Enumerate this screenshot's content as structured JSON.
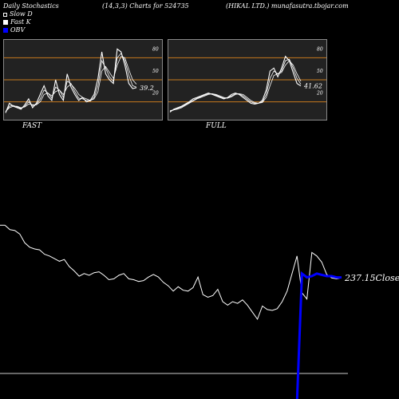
{
  "header": {
    "title": "Daily Stochastics",
    "params": "(14,3,3) Charts for 524735",
    "company": "(HIKAL LTD.) munafasutra.tbojar.com"
  },
  "legend": [
    {
      "label": "Slow  D",
      "color": "#ffffff",
      "style": "outline"
    },
    {
      "label": "Fast K",
      "color": "#ffffff",
      "style": "filled"
    },
    {
      "label": "OBV",
      "color": "#0000ff",
      "style": "filled"
    }
  ],
  "colors": {
    "background": "#000000",
    "panel_bg": "#222222",
    "level_lines": "#c87a1e",
    "line": "#ffffff",
    "obv": "#0000ff"
  },
  "chart_data": [
    {
      "type": "line",
      "name": "fast-stochastic",
      "panel_label": "FAST",
      "ylim": [
        0,
        100
      ],
      "levels": [
        20,
        50,
        80
      ],
      "level_labels": [
        "20",
        "50",
        "80"
      ],
      "last_value_label": "39.2",
      "series": [
        {
          "values": [
            5,
            18,
            14,
            12,
            10,
            16,
            24,
            12,
            18,
            30,
            42,
            28,
            22,
            50,
            30,
            22,
            58,
            40,
            30,
            22,
            26,
            20,
            22,
            30,
            52,
            88,
            58,
            50,
            45,
            92,
            88,
            70,
            45,
            38,
            39.2
          ]
        },
        {
          "values": [
            6,
            14,
            15,
            13,
            11,
            14,
            20,
            15,
            16,
            24,
            36,
            32,
            25,
            40,
            36,
            26,
            48,
            45,
            34,
            25,
            24,
            22,
            21,
            26,
            42,
            76,
            66,
            54,
            48,
            80,
            86,
            76,
            56,
            42,
            40
          ]
        },
        {
          "values": [
            7,
            12,
            14,
            14,
            12,
            13,
            17,
            16,
            16,
            20,
            30,
            32,
            28,
            34,
            36,
            30,
            40,
            44,
            38,
            30,
            26,
            24,
            22,
            24,
            34,
            62,
            68,
            60,
            52,
            70,
            82,
            80,
            64,
            50,
            44
          ]
        }
      ]
    },
    {
      "type": "line",
      "name": "full-stochastic",
      "panel_label": "FULL",
      "ylim": [
        0,
        100
      ],
      "levels": [
        20,
        50,
        80
      ],
      "level_labels": [
        "20",
        "50",
        "80"
      ],
      "last_value_label": "41.62",
      "series": [
        {
          "values": [
            6,
            10,
            12,
            14,
            17,
            20,
            24,
            26,
            28,
            30,
            32,
            30,
            28,
            26,
            24,
            26,
            30,
            32,
            30,
            26,
            22,
            18,
            17,
            18,
            22,
            36,
            62,
            66,
            54,
            66,
            82,
            76,
            60,
            45,
            41.62
          ]
        },
        {
          "values": [
            7,
            9,
            11,
            13,
            16,
            19,
            22,
            25,
            27,
            29,
            31,
            31,
            29,
            27,
            25,
            25,
            28,
            31,
            31,
            28,
            24,
            20,
            18,
            18,
            20,
            30,
            52,
            62,
            58,
            62,
            76,
            78,
            66,
            52,
            44
          ]
        },
        {
          "values": [
            8,
            9,
            10,
            12,
            15,
            18,
            21,
            24,
            26,
            28,
            30,
            31,
            30,
            28,
            26,
            25,
            27,
            30,
            31,
            30,
            26,
            22,
            19,
            18,
            19,
            26,
            42,
            56,
            58,
            60,
            70,
            76,
            70,
            58,
            48
          ]
        }
      ]
    },
    {
      "type": "line",
      "name": "price-obv",
      "last_value_label": "237.15Close",
      "series": [
        {
          "name": "Close",
          "values": [
            297,
            297,
            292,
            291,
            287,
            277,
            272,
            270,
            269,
            264,
            262,
            259,
            256,
            258,
            250,
            245,
            239,
            242,
            240,
            243,
            244,
            240,
            235,
            236,
            240,
            242,
            236,
            235,
            233,
            234,
            238,
            241,
            238,
            232,
            228,
            222,
            227,
            223,
            222,
            226,
            238,
            218,
            215,
            217,
            224,
            210,
            206,
            210,
            208,
            212,
            206,
            198,
            190,
            205,
            201,
            200,
            202,
            210,
            222,
            242,
            262,
            220,
            213,
            266,
            262,
            255,
            241,
            237,
            236,
            237.15
          ]
        },
        {
          "name": "OBV",
          "values": [
            -100,
            -100,
            -100,
            -100,
            -100,
            -100,
            -100,
            -100,
            -100,
            -100,
            -100,
            -100,
            -100,
            -100,
            -100,
            -100,
            -100,
            -100,
            -100,
            -100,
            -100,
            -100,
            -100,
            -100,
            -100,
            -100,
            -100,
            -100,
            -100,
            -100,
            -100,
            -100,
            -100,
            -100,
            -100,
            -100,
            -100,
            -100,
            -100,
            -100,
            -100,
            -100,
            -100,
            -100,
            -100,
            -100,
            -100,
            -100,
            -100,
            -100,
            -100,
            -100,
            -100,
            -100,
            -100,
            -100,
            -100,
            -100,
            -100,
            -100,
            -100,
            0,
            -3,
            -2,
            0,
            -1,
            -2,
            -2,
            -3,
            -3
          ]
        }
      ]
    }
  ]
}
